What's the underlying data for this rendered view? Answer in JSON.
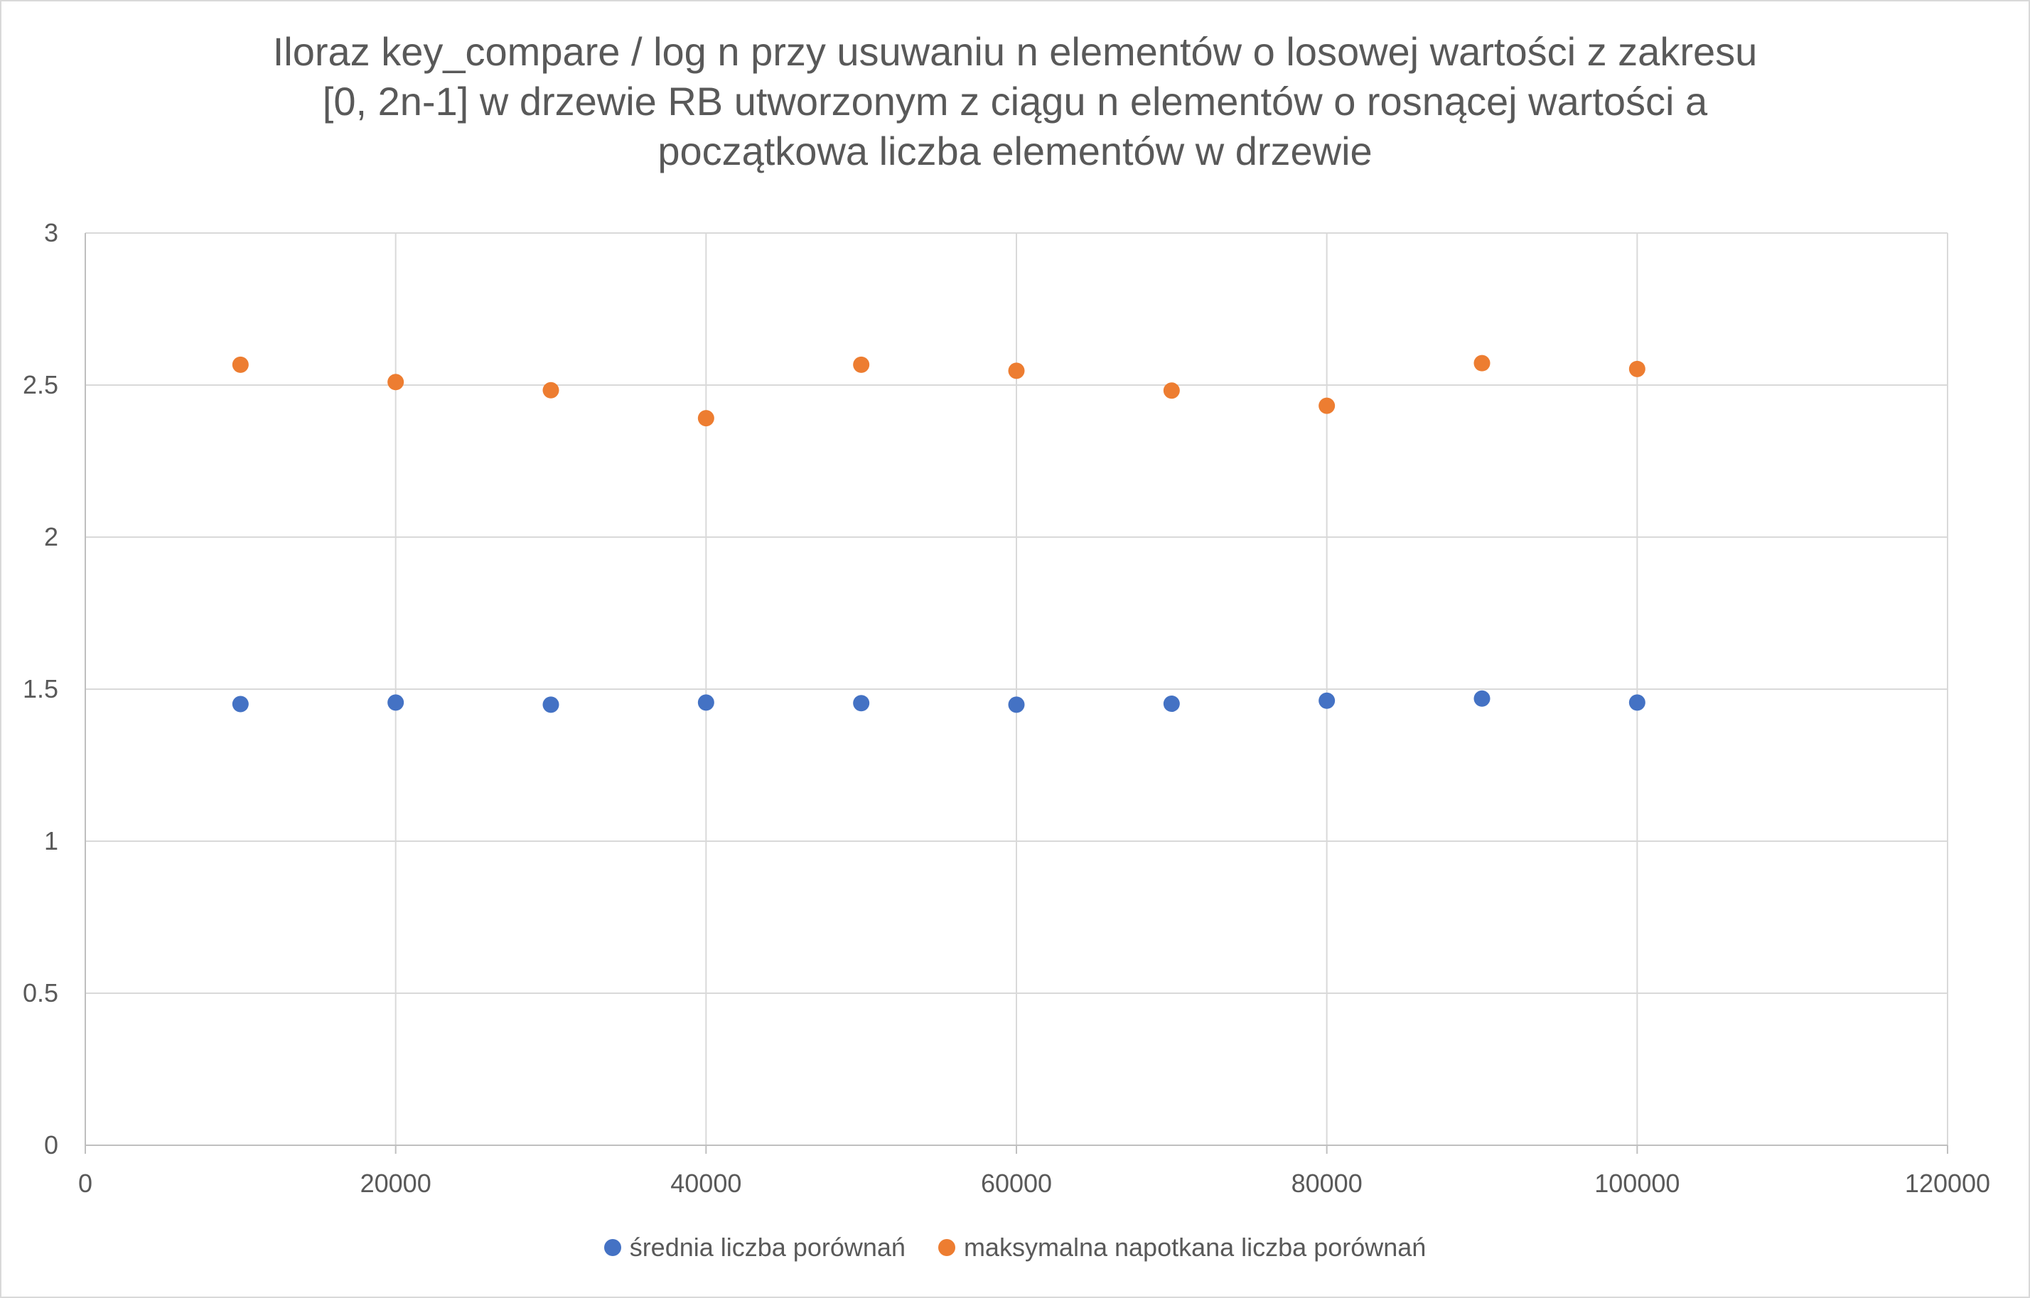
{
  "chart_data": {
    "type": "scatter",
    "title_lines": [
      "Iloraz key_compare / log n przy usuwaniu n elementów o losowej wartości z zakresu",
      "[0, 2n-1] w drzewie RB utworzonym z ciągu n elementów o rosnącej wartości a",
      "początkowa liczba elementów w drzewie"
    ],
    "xlabel": "",
    "ylabel": "",
    "xlim": [
      0,
      120000
    ],
    "ylim": [
      0,
      3
    ],
    "x_ticks": [
      "0",
      "20000",
      "40000",
      "60000",
      "80000",
      "100000",
      "120000"
    ],
    "y_ticks": [
      "0",
      "0.5",
      "1",
      "1.5",
      "2",
      "2.5",
      "3"
    ],
    "grid": true,
    "legend_position": "bottom",
    "series": [
      {
        "name": "średnia liczba porównań",
        "color": "#4472C4",
        "x": [
          10000,
          20000,
          30000,
          40000,
          50000,
          60000,
          70000,
          80000,
          90000,
          100000
        ],
        "y": [
          1.451,
          1.456,
          1.449,
          1.456,
          1.454,
          1.449,
          1.452,
          1.462,
          1.469,
          1.456
        ]
      },
      {
        "name": "maksymalna napotkana liczba porównań",
        "color": "#ED7D31",
        "x": [
          10000,
          20000,
          30000,
          40000,
          50000,
          60000,
          70000,
          80000,
          90000,
          100000
        ],
        "y": [
          2.567,
          2.51,
          2.483,
          2.391,
          2.567,
          2.547,
          2.482,
          2.432,
          2.572,
          2.553
        ]
      }
    ]
  }
}
